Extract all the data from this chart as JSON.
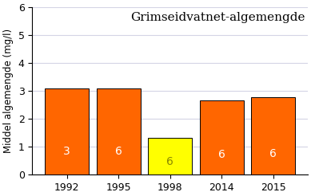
{
  "title": "Grimseidvatnet-algemengde",
  "ylabel": "Middel algemengde (mg/l)",
  "categories": [
    "1992",
    "1995",
    "1998",
    "2014",
    "2015"
  ],
  "values": [
    3.1,
    3.1,
    1.32,
    2.65,
    2.77
  ],
  "bar_colors": [
    "#FF6600",
    "#FF6600",
    "#FFFF00",
    "#FF6600",
    "#FF6600"
  ],
  "bar_labels": [
    "3",
    "6",
    "6",
    "6",
    "6"
  ],
  "bar_label_colors": [
    "#FFFFFF",
    "#FFFFFF",
    "#888800",
    "#FFFFFF",
    "#FFFFFF"
  ],
  "ylim": [
    0,
    6
  ],
  "yticks": [
    0,
    1,
    2,
    3,
    4,
    5,
    6
  ],
  "title_fontsize": 11,
  "label_fontsize": 8.5,
  "tick_fontsize": 9,
  "bar_label_fontsize": 10,
  "bar_width": 0.85,
  "background_color": "#FFFFFF",
  "grid_color": "#AAAACC",
  "grid_alpha": 0.5
}
